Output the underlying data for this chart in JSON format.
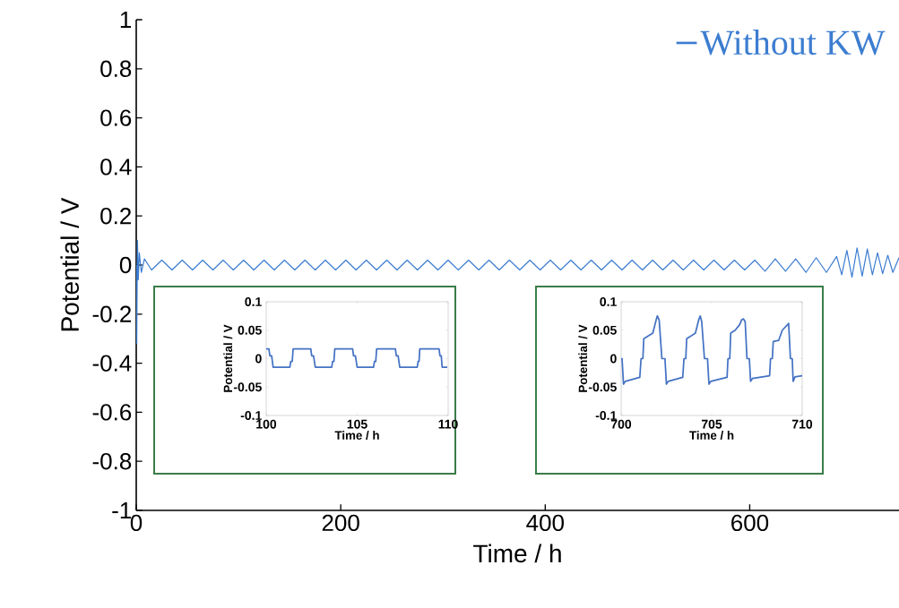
{
  "chart_data": [
    {
      "type": "line",
      "xlabel": "Time / h",
      "ylabel": "Potential / V",
      "xlim": [
        0,
        746
      ],
      "ylim": [
        -1,
        1
      ],
      "xticks": [
        0,
        200,
        400,
        600
      ],
      "yticks": [
        -1,
        -0.8,
        -0.6,
        -0.4,
        -0.2,
        0,
        0.2,
        0.4,
        0.6,
        0.8,
        1
      ],
      "legend": "top right",
      "series": [
        {
          "name": "Without KW",
          "color": "#3c7dd0",
          "x": [
            0,
            0.5,
            1.2,
            2,
            3,
            5,
            8,
            15,
            25,
            35,
            45,
            55,
            65,
            75,
            85,
            95,
            105,
            115,
            125,
            135,
            145,
            155,
            165,
            175,
            185,
            195,
            205,
            215,
            225,
            235,
            245,
            255,
            265,
            275,
            285,
            295,
            305,
            315,
            325,
            335,
            345,
            355,
            365,
            375,
            385,
            395,
            405,
            415,
            425,
            435,
            445,
            455,
            465,
            475,
            485,
            495,
            505,
            515,
            525,
            535,
            545,
            555,
            565,
            575,
            585,
            595,
            605,
            615,
            625,
            635,
            645,
            655,
            665,
            675,
            685,
            690,
            695,
            700,
            705,
            710,
            715,
            720,
            725,
            730,
            735,
            740,
            746
          ],
          "values": [
            0,
            -0.32,
            0.1,
            -0.06,
            0.05,
            -0.03,
            0.025,
            -0.02,
            0.02,
            -0.02,
            0.02,
            -0.02,
            0.02,
            -0.02,
            0.02,
            -0.02,
            0.02,
            -0.02,
            0.02,
            -0.02,
            0.02,
            -0.02,
            0.02,
            -0.02,
            0.02,
            -0.02,
            0.02,
            -0.02,
            0.02,
            -0.02,
            0.02,
            -0.02,
            0.02,
            -0.02,
            0.02,
            -0.02,
            0.02,
            -0.02,
            0.02,
            -0.02,
            0.02,
            -0.02,
            0.02,
            -0.02,
            0.02,
            -0.02,
            0.02,
            -0.02,
            0.02,
            -0.02,
            0.02,
            -0.02,
            0.02,
            -0.02,
            0.02,
            -0.02,
            0.02,
            -0.02,
            0.02,
            -0.02,
            0.02,
            -0.02,
            0.02,
            -0.02,
            0.02,
            -0.02,
            0.02,
            -0.025,
            0.025,
            -0.025,
            0.025,
            -0.03,
            0.03,
            -0.03,
            0.035,
            -0.04,
            0.06,
            -0.05,
            0.07,
            -0.045,
            0.065,
            -0.04,
            0.05,
            -0.035,
            0.04,
            -0.03,
            0.03
          ]
        }
      ]
    },
    {
      "type": "line",
      "xlabel": "Time / h",
      "ylabel": "Potential / V",
      "xlim": [
        100,
        110
      ],
      "ylim": [
        -0.1,
        0.1
      ],
      "xticks": [
        100,
        105,
        110
      ],
      "yticks": [
        -0.1,
        -0.05,
        0,
        0.05,
        0.1
      ],
      "series": [
        {
          "color": "#4472c4",
          "x": [
            100,
            100.15,
            100.2,
            100.3,
            100.38,
            101.3,
            101.35,
            101.43,
            101.48,
            102.45,
            102.5,
            102.6,
            102.7,
            103.6,
            103.65,
            103.72,
            103.77,
            104.75,
            104.8,
            104.9,
            105.0,
            105.9,
            105.95,
            106.02,
            106.07,
            107.1,
            107.15,
            107.25,
            107.34,
            108.3,
            108.35,
            108.4,
            108.44,
            109.5,
            109.55,
            109.62,
            109.67,
            109.95
          ],
          "values": [
            0.017,
            0.017,
            0.005,
            0.005,
            -0.015,
            -0.015,
            -0.005,
            -0.005,
            0.017,
            0.017,
            0.005,
            0.005,
            -0.015,
            -0.015,
            -0.005,
            -0.005,
            0.017,
            0.017,
            0.005,
            0.005,
            -0.015,
            -0.015,
            -0.005,
            -0.005,
            0.017,
            0.017,
            0.005,
            0.005,
            -0.015,
            -0.015,
            -0.005,
            -0.005,
            0.017,
            0.017,
            0.005,
            0.005,
            -0.015,
            -0.015
          ]
        }
      ]
    },
    {
      "type": "line",
      "xlabel": "Time / h",
      "ylabel": "Potential / V",
      "xlim": [
        700,
        710
      ],
      "ylim": [
        -0.1,
        0.1
      ],
      "xticks": [
        700,
        705,
        710
      ],
      "yticks": [
        -0.1,
        -0.05,
        0,
        0.05,
        0.1
      ],
      "series": [
        {
          "color": "#4472c4",
          "x": [
            700,
            700.05,
            700.13,
            700.23,
            701.03,
            701.1,
            701.2,
            701.25,
            701.5,
            701.75,
            701.95,
            702.0,
            702.1,
            702.25,
            702.42,
            702.5,
            702.6,
            703.4,
            703.47,
            703.57,
            703.62,
            703.87,
            704.1,
            704.3,
            704.37,
            704.45,
            704.6,
            704.77,
            704.85,
            704.95,
            705.85,
            705.9,
            706.0,
            706.05,
            706.3,
            706.55,
            706.65,
            706.75,
            706.85,
            706.95,
            707.08,
            707.15,
            707.25,
            708.2,
            708.25,
            708.35,
            708.4,
            708.7,
            708.9,
            709.2,
            709.25,
            709.35,
            709.45,
            709.5,
            709.6,
            710
          ],
          "values": [
            0,
            0,
            -0.045,
            -0.04,
            -0.033,
            0,
            0,
            0.035,
            0.04,
            0.045,
            0.07,
            0.075,
            0.068,
            0,
            0,
            -0.045,
            -0.04,
            -0.033,
            0,
            0,
            0.035,
            0.04,
            0.045,
            0.07,
            0.075,
            0.065,
            0,
            0,
            -0.045,
            -0.04,
            -0.033,
            0,
            0,
            0.045,
            0.05,
            0.06,
            0.068,
            0.07,
            0.065,
            0,
            0,
            -0.04,
            -0.035,
            -0.03,
            0,
            0,
            0.03,
            0.032,
            0.05,
            0.06,
            0.062,
            0,
            0,
            -0.04,
            -0.032,
            -0.03
          ]
        }
      ]
    }
  ]
}
